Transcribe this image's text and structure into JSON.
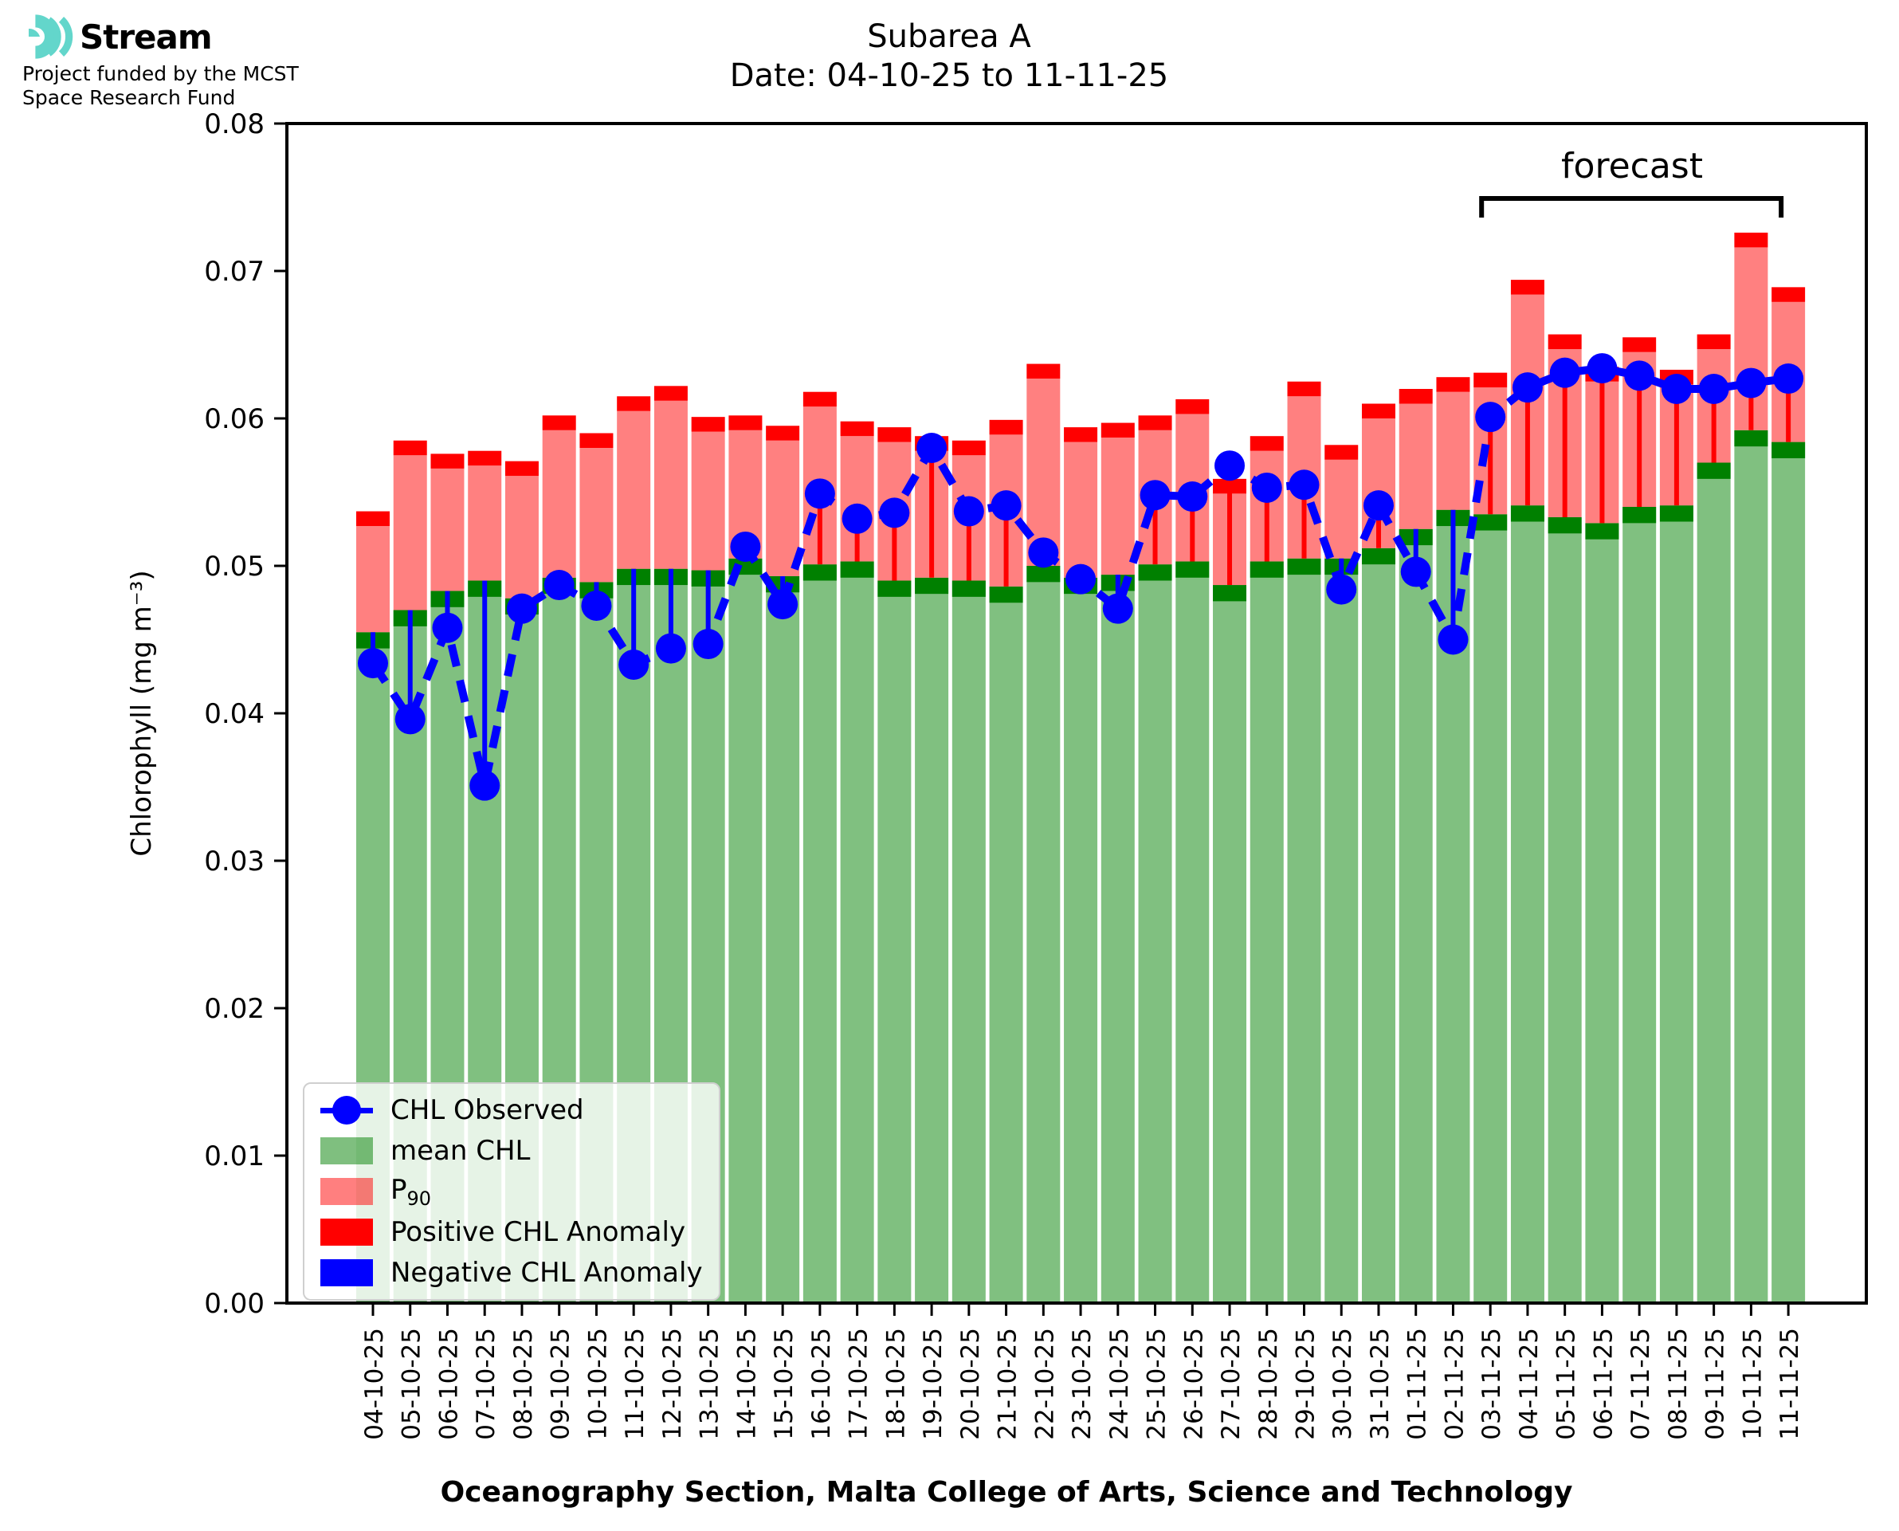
{
  "logo": {
    "name": "Stream",
    "funding_line1": "Project funded by the MCST",
    "funding_line2": "Space Research Fund",
    "icon": "ripple-waves-icon",
    "icon_color": "#63d6cb"
  },
  "chart_data": {
    "type": "bar",
    "title": "Subarea A",
    "subtitle": "Date: 04-10-25 to 11-11-25",
    "xlabel": "Oceanography Section, Malta College of Arts, Science and Technology",
    "ylabel": "Chlorophyll (mg m⁻³)",
    "ylim": [
      0,
      0.08
    ],
    "yticks": [
      "0.00",
      "0.01",
      "0.02",
      "0.03",
      "0.04",
      "0.05",
      "0.06",
      "0.07",
      "0.08"
    ],
    "grid": false,
    "categories": [
      "04-10-25",
      "05-10-25",
      "06-10-25",
      "07-10-25",
      "08-10-25",
      "09-10-25",
      "10-10-25",
      "11-10-25",
      "12-10-25",
      "13-10-25",
      "14-10-25",
      "15-10-25",
      "16-10-25",
      "17-10-25",
      "18-10-25",
      "19-10-25",
      "20-10-25",
      "21-10-25",
      "22-10-25",
      "23-10-25",
      "24-10-25",
      "25-10-25",
      "26-10-25",
      "27-10-25",
      "28-10-25",
      "29-10-25",
      "30-10-25",
      "31-10-25",
      "01-11-25",
      "02-11-25",
      "03-11-25",
      "04-11-25",
      "05-11-25",
      "06-11-25",
      "07-11-25",
      "08-11-25",
      "09-11-25",
      "10-11-25",
      "11-11-25"
    ],
    "series": [
      {
        "name": "mean CHL",
        "type": "bar",
        "color": "#80c080",
        "cap_color": "#008000",
        "values": [
          0.0455,
          0.047,
          0.0483,
          0.049,
          0.0478,
          0.0492,
          0.0489,
          0.0498,
          0.0498,
          0.0497,
          0.0505,
          0.0493,
          0.0501,
          0.0503,
          0.049,
          0.0492,
          0.049,
          0.0486,
          0.05,
          0.0492,
          0.0494,
          0.0501,
          0.0503,
          0.0487,
          0.0503,
          0.0505,
          0.0505,
          0.0512,
          0.0525,
          0.0538,
          0.0535,
          0.0541,
          0.0533,
          0.0529,
          0.054,
          0.0541,
          0.057,
          0.0592,
          0.0584
        ]
      },
      {
        "name": "P90",
        "type": "bar",
        "color": "#ff8080",
        "cap_color": "#ff0000",
        "values": [
          0.0537,
          0.0585,
          0.0576,
          0.0578,
          0.0571,
          0.0602,
          0.059,
          0.0615,
          0.0622,
          0.0601,
          0.0602,
          0.0595,
          0.0618,
          0.0598,
          0.0594,
          0.0588,
          0.0585,
          0.0599,
          0.0637,
          0.0594,
          0.0597,
          0.0602,
          0.0613,
          0.0559,
          0.0588,
          0.0625,
          0.0582,
          0.061,
          0.062,
          0.0628,
          0.0631,
          0.0694,
          0.0657,
          0.0635,
          0.0655,
          0.0633,
          0.0657,
          0.0726,
          0.0689
        ]
      },
      {
        "name": "CHL Observed",
        "type": "line",
        "color": "#0000ff",
        "values": [
          0.0434,
          0.0396,
          0.0458,
          0.0351,
          0.0471,
          0.0487,
          0.0473,
          0.0433,
          0.0444,
          0.0447,
          0.0513,
          0.0474,
          0.0549,
          0.0532,
          0.0536,
          0.058,
          0.0537,
          0.0541,
          0.0509,
          0.0491,
          0.0471,
          0.0548,
          0.0547,
          0.0568,
          0.0553,
          0.0555,
          0.0484,
          0.0541,
          0.0496,
          0.045,
          0.0601,
          0.0621,
          0.0631,
          0.0634,
          0.0629,
          0.062,
          0.062,
          0.0624,
          0.0627
        ]
      }
    ],
    "anomaly_colors": {
      "positive": "#ff0000",
      "negative": "#0000ff"
    },
    "annotations": {
      "forecast": {
        "label": "forecast",
        "start_category": "03-11-25",
        "end_category": "11-11-25"
      }
    },
    "legend": {
      "position": "lower left",
      "entries": [
        {
          "label": "CHL Observed",
          "marker": "line-dot",
          "color": "#0000ff"
        },
        {
          "label": "mean CHL",
          "marker": "patch",
          "color": "rgba(0,128,0,0.5)"
        },
        {
          "label": "P90",
          "label_main": "P",
          "label_sub": "90",
          "marker": "patch",
          "color": "rgba(255,0,0,0.5)"
        },
        {
          "label": "Positive CHL Anomaly",
          "marker": "patch",
          "color": "#ff0000"
        },
        {
          "label": "Negative CHL Anomaly",
          "marker": "patch",
          "color": "#0000ff"
        }
      ]
    }
  }
}
